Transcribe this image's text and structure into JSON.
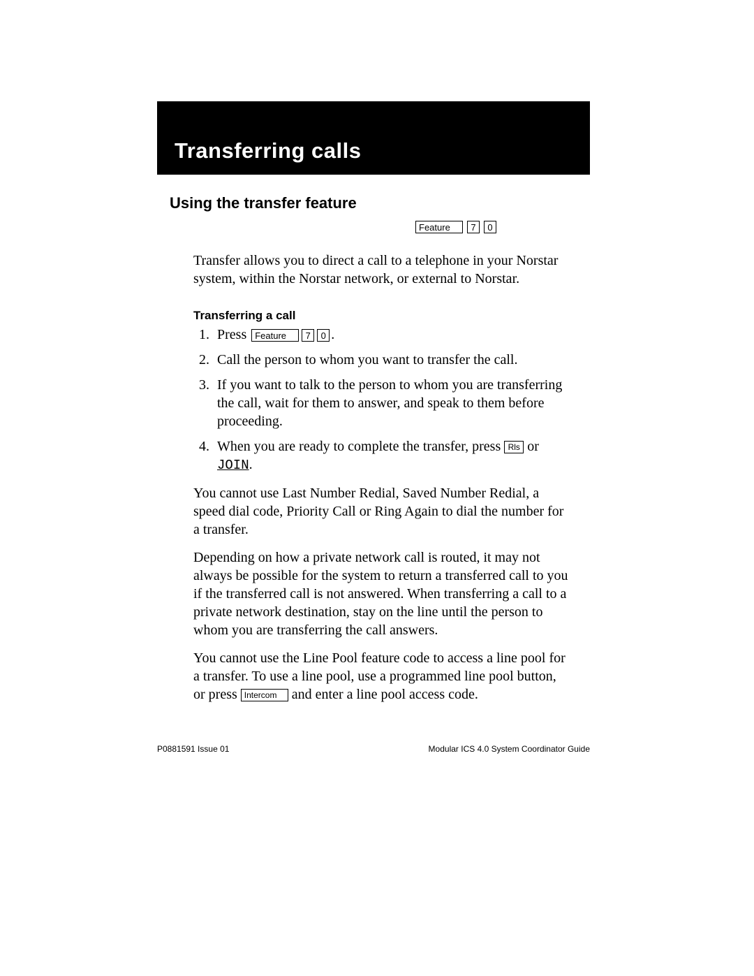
{
  "chapter": {
    "title": "Transferring calls"
  },
  "section": {
    "heading": "Using the transfer feature"
  },
  "keys": {
    "feature": "Feature",
    "digit7": "7",
    "digit0": "0",
    "rls": "Rls",
    "intercom": "Intercom"
  },
  "intro": "Transfer allows you to direct a call to a telephone in your Norstar system, within the Norstar network, or external to Norstar.",
  "subheading": "Transferring a call",
  "steps": {
    "s1_pre": "Press ",
    "s1_post": ".",
    "s2": "Call the person to whom you want to transfer the call.",
    "s3": "If you want to talk to the person to whom you are transferring the call, wait for them to answer, and speak to them before proceeding.",
    "s4_pre": "When you are ready to complete the transfer, press ",
    "s4_mid": " or ",
    "s4_join": "JOIN",
    "s4_post": "."
  },
  "para1": "You cannot use Last Number Redial, Saved Number Redial, a speed dial code, Priority Call or Ring Again to dial the number for a transfer.",
  "para2": "Depending on how a private network call is routed, it may not always be possible for the system to return a transferred call to you if the transferred call is not answered. When transferring a call to a private network destination, stay on the line until the person to whom you are transferring the call answers.",
  "para3_pre": "You cannot use the Line Pool feature code to access a line pool for a transfer. To use a line pool, use a programmed line pool button, or press ",
  "para3_post": " and enter a line pool access code.",
  "footer": {
    "left": "P0881591 Issue 01",
    "right": "Modular ICS 4.0 System Coordinator Guide"
  }
}
